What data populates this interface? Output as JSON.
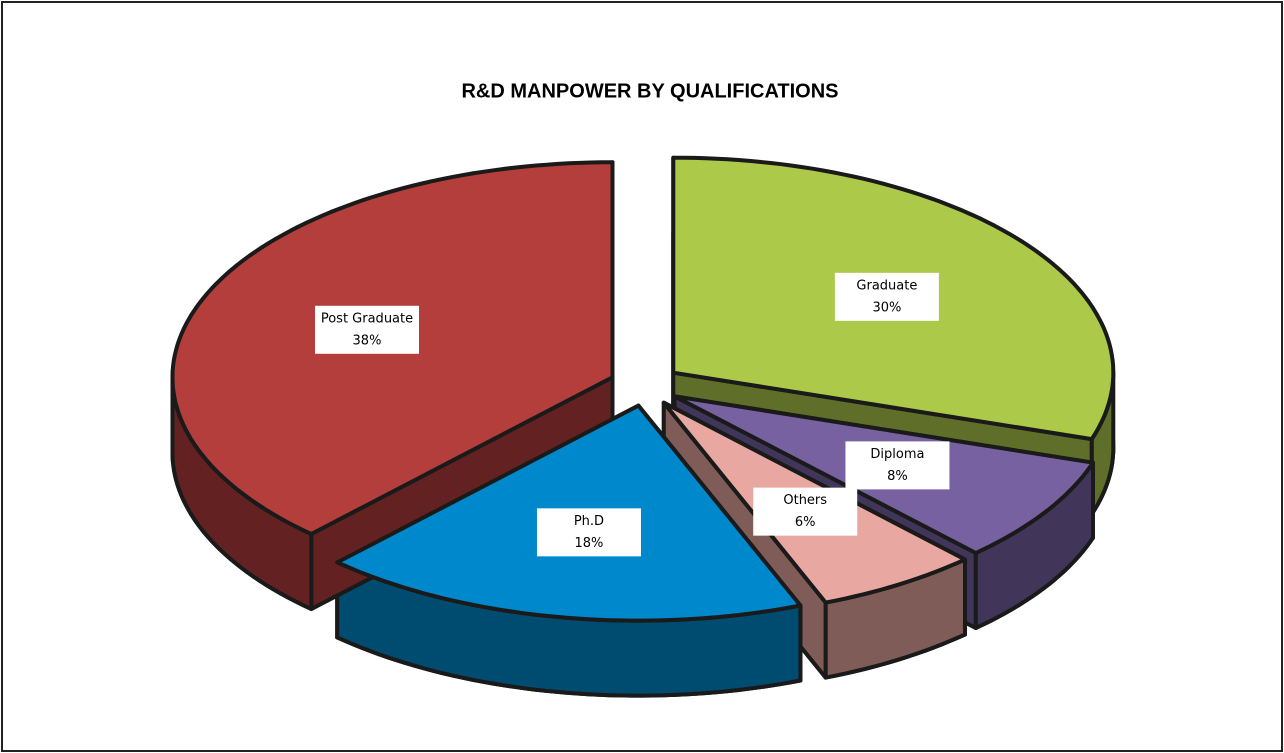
{
  "chart_data": {
    "type": "pie",
    "title": "R&D MANPOWER BY QUALIFICATIONS",
    "categories": [
      "Graduate",
      "Diploma",
      "Others",
      "Ph.D",
      "Post Graduate"
    ],
    "values": [
      30,
      8,
      6,
      18,
      38
    ],
    "value_labels": [
      "30%",
      "8%",
      "6%",
      "18%",
      "38%"
    ],
    "colors": [
      "#adc94a",
      "#7761a1",
      "#e9a7a2",
      "#0088cc",
      "#b43e3c"
    ]
  }
}
